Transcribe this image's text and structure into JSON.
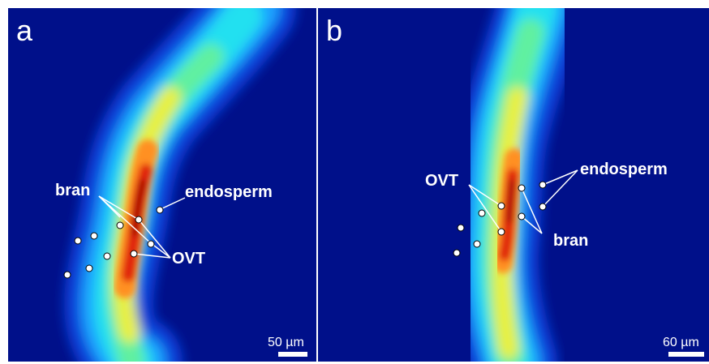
{
  "panels": {
    "a": {
      "letter": "a",
      "labels": {
        "bran": "bran",
        "endosperm": "endosperm",
        "ovt": "OVT"
      },
      "scale_bar": "50 µm"
    },
    "b": {
      "letter": "b",
      "labels": {
        "ovt": "OVT",
        "endosperm": "endosperm",
        "bran": "bran"
      },
      "scale_bar": "60 µm"
    }
  },
  "colors": {
    "background": "#00108a",
    "colormap": [
      "#00108a",
      "#0a40d8",
      "#1aa0ff",
      "#20e0f0",
      "#60f0a0",
      "#e8f040",
      "#ff9020",
      "#e02010",
      "#a00000"
    ]
  }
}
